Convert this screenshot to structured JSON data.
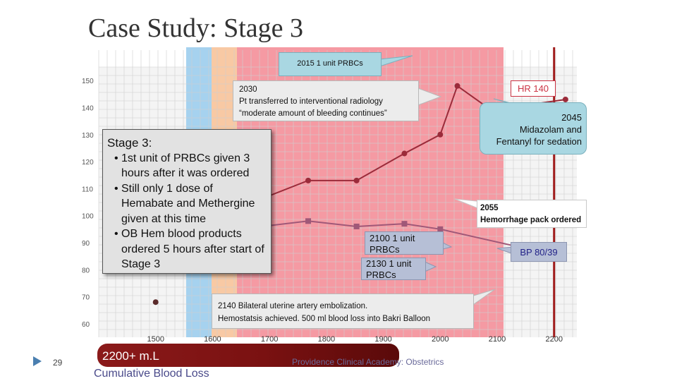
{
  "slide": {
    "title": "Case Study: Stage 3",
    "slide_number": "29",
    "footer": "Providence Clinical Academy: Obstetrics"
  },
  "colors": {
    "blue_band": "#a6d2ef",
    "orange_band": "#f8c9a4",
    "red_zone": "#f59aa3",
    "marker_line": "#a01c1c",
    "hr_series": "#9b2b3a",
    "bp_series": "#a05878"
  },
  "chart_data": {
    "type": "line",
    "title": "",
    "xlabel": "",
    "ylabel": "",
    "x_ticks": [
      "1500",
      "1600",
      "1700",
      "1800",
      "1900",
      "2000",
      "2100",
      "2200"
    ],
    "y_ticks": [
      "150",
      "140",
      "130",
      "120",
      "110",
      "100",
      "90",
      "80",
      "70",
      "60"
    ],
    "xlim": [
      1400,
      2240
    ],
    "ylim": [
      55,
      155
    ],
    "grid": true,
    "time_markers": [
      2200
    ],
    "series": [
      {
        "values": [
          [
            1440,
            80
          ],
          [
            1647,
            103
          ],
          [
            1768,
            113
          ],
          [
            1853,
            113
          ],
          [
            1937,
            123
          ],
          [
            2000,
            130
          ],
          [
            2030,
            148
          ],
          [
            2090,
            139
          ],
          [
            2220,
            143
          ]
        ]
      },
      {
        "values": [
          [
            1440,
            96
          ],
          [
            1647,
            95
          ],
          [
            1768,
            98
          ],
          [
            1853,
            96
          ],
          [
            1937,
            97
          ],
          [
            2000,
            95
          ],
          [
            2210,
            85
          ]
        ]
      },
      {
        "values": [
          [
            1500,
            68
          ]
        ]
      }
    ]
  },
  "annotations": {
    "c2015": "2015  1 unit PRBCs",
    "c2030": [
      "2030",
      "Pt transferred to interventional radiology",
      "“moderate amount of bleeding continues”"
    ],
    "hr": "HR 140",
    "c2045": [
      "2045",
      "Midazolam  and",
      "Fentanyl for  sedation"
    ],
    "c2055": [
      "2055",
      "Hemorrhage pack ordered"
    ],
    "c2100": [
      "2100  1 unit",
      "PRBCs"
    ],
    "c2130": [
      "2130   1 unit",
      "PRBCs"
    ],
    "bp": "BP 80/39",
    "c2140": [
      "2140  Bilateral uterine artery embolization.",
      "Hemostatsis achieved.  500 ml blood loss into Bakri Balloon"
    ]
  },
  "stage3_box": {
    "title": "Stage 3:",
    "bullets": [
      "1st unit of PRBCs given 3 hours after it was ordered",
      "Still only 1 dose of Hemabate and Methergine given at this time",
      "OB Hem blood products ordered 5 hours after start of Stage 3"
    ]
  },
  "blood_loss": {
    "value": "2200+  m.L",
    "label": "Cumulative Blood Loss"
  }
}
